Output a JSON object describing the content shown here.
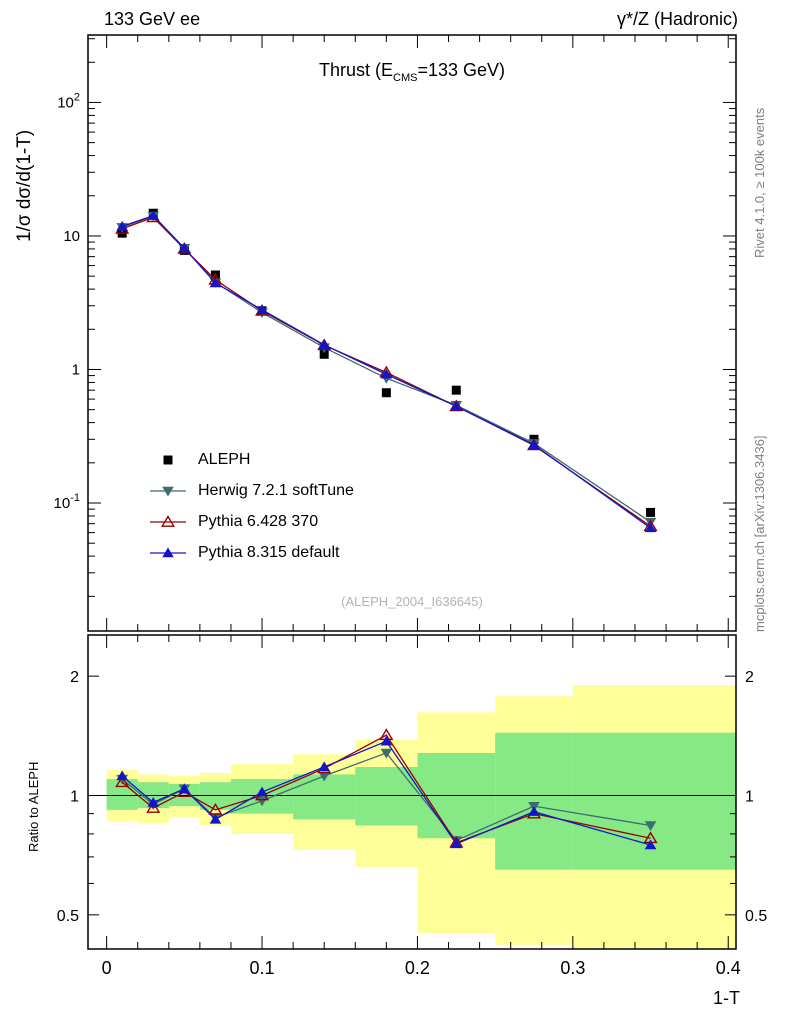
{
  "header": {
    "left": "133 GeV ee",
    "right": "γ*/Z (Hadronic)"
  },
  "title": {
    "pre": "Thrust (E",
    "sub": "CMS",
    "post": "=133 GeV)"
  },
  "axes": {
    "y_label": "1/σ  dσ/d(1-T)",
    "ratio_label": "Ratio to ALEPH",
    "x_label": "1-T",
    "x_ticks": [
      {
        "v": 0.0,
        "label": "0"
      },
      {
        "v": 0.1,
        "label": "0.1"
      },
      {
        "v": 0.2,
        "label": "0.2"
      },
      {
        "v": 0.3,
        "label": "0.3"
      },
      {
        "v": 0.4,
        "label": "0.4"
      }
    ],
    "y_ticks": [
      {
        "v": 100,
        "base": "10",
        "exp": "2"
      },
      {
        "v": 10,
        "base": "10",
        "exp": ""
      },
      {
        "v": 1,
        "base": "1",
        "exp": ""
      },
      {
        "v": 0.1,
        "base": "10",
        "exp": "-1"
      }
    ],
    "ratio_ticks": [
      {
        "v": 2,
        "label": "2"
      },
      {
        "v": 1,
        "label": "1"
      },
      {
        "v": 0.5,
        "label": "0.5"
      }
    ]
  },
  "side_notes": {
    "top_right": "Rivet 4.1.0, ≥ 100k events",
    "bottom_right": "mcplots.cern.ch [arXiv:1306.3436]"
  },
  "watermark": "(ALEPH_2004_I636645)",
  "colors": {
    "frame": "#000000",
    "band_yellow": "#ffff99",
    "band_green": "#86e986",
    "aleph": "#000000",
    "herwig": "#3b6e6e",
    "pythia6": "#990000",
    "pythia8": "#1414cc",
    "note_gray": "#808080",
    "watermark_gray": "#b3b3b3"
  },
  "chart_data": {
    "type": "line",
    "title": "Thrust (E_CMS=133 GeV)",
    "xlabel": "1-T",
    "ylabel": "1/sigma dsigma/d(1-T)",
    "xlim": [
      -0.012,
      0.405
    ],
    "main_ylim": [
      0.011,
      320
    ],
    "ratio_ylim": [
      0.41,
      2.54
    ],
    "x": [
      0.01,
      0.03,
      0.05,
      0.07,
      0.1,
      0.14,
      0.18,
      0.225,
      0.275,
      0.35
    ],
    "series": [
      {
        "name": "ALEPH",
        "marker": "square-filled",
        "color": "#000000",
        "line": false,
        "values": [
          10.5,
          14.8,
          7.8,
          5.1,
          2.75,
          1.3,
          0.67,
          0.7,
          0.3,
          0.085
        ]
      },
      {
        "name": "Herwig 7.2.1 softTune",
        "marker": "triangle-down-filled",
        "color": "#3b6e6e",
        "line": true,
        "values": [
          11.6,
          14.1,
          8.1,
          4.5,
          2.67,
          1.46,
          0.86,
          0.54,
          0.28,
          0.072
        ],
        "ratio": [
          1.1,
          0.95,
          1.04,
          0.88,
          0.97,
          1.12,
          1.28,
          0.77,
          0.94,
          0.84
        ]
      },
      {
        "name": "Pythia 6.428 370",
        "marker": "triangle-up-open",
        "color": "#990000",
        "line": true,
        "values": [
          11.3,
          13.8,
          8.0,
          4.7,
          2.75,
          1.52,
          0.95,
          0.53,
          0.27,
          0.067
        ],
        "ratio": [
          1.08,
          0.93,
          1.02,
          0.92,
          1.0,
          1.17,
          1.42,
          0.76,
          0.9,
          0.78
        ]
      },
      {
        "name": "Pythia 8.315 default",
        "marker": "triangle-up-filled",
        "color": "#1414cc",
        "line": true,
        "values": [
          11.8,
          14.2,
          8.1,
          4.44,
          2.8,
          1.53,
          0.92,
          0.53,
          0.273,
          0.065
        ],
        "ratio": [
          1.12,
          0.96,
          1.04,
          0.87,
          1.02,
          1.18,
          1.37,
          0.755,
          0.91,
          0.75
        ]
      }
    ],
    "bands": {
      "bins": [
        [
          0.0,
          0.02
        ],
        [
          0.02,
          0.04
        ],
        [
          0.04,
          0.06
        ],
        [
          0.06,
          0.08
        ],
        [
          0.08,
          0.12
        ],
        [
          0.12,
          0.16
        ],
        [
          0.16,
          0.2
        ],
        [
          0.2,
          0.25
        ],
        [
          0.25,
          0.3
        ],
        [
          0.3,
          0.405
        ]
      ],
      "yellow": [
        [
          0.86,
          1.16
        ],
        [
          0.85,
          1.13
        ],
        [
          0.88,
          1.12
        ],
        [
          0.84,
          1.14
        ],
        [
          0.8,
          1.2
        ],
        [
          0.73,
          1.27
        ],
        [
          0.66,
          1.38
        ],
        [
          0.45,
          1.62
        ],
        [
          0.42,
          1.78
        ],
        [
          0.38,
          1.9
        ]
      ],
      "green": [
        [
          0.92,
          1.1
        ],
        [
          0.93,
          1.08
        ],
        [
          0.94,
          1.07
        ],
        [
          0.92,
          1.08
        ],
        [
          0.9,
          1.1
        ],
        [
          0.87,
          1.13
        ],
        [
          0.84,
          1.18
        ],
        [
          0.78,
          1.28
        ],
        [
          0.65,
          1.44
        ],
        [
          0.65,
          1.44
        ]
      ]
    },
    "legend_position": "inside-left-lower",
    "grid": false
  }
}
